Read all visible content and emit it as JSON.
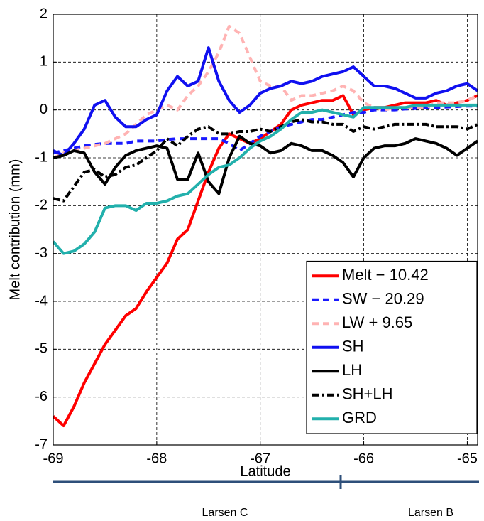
{
  "chart_data": {
    "type": "line",
    "x_label": "Latitude",
    "y_label": "Melt contribution (mm)",
    "x": [
      -69,
      -68.9,
      -68.8,
      -68.7,
      -68.6,
      -68.5,
      -68.4,
      -68.3,
      -68.2,
      -68.1,
      -68,
      -67.9,
      -67.8,
      -67.7,
      -67.6,
      -67.5,
      -67.4,
      -67.3,
      -67.2,
      -67.1,
      -67,
      -66.9,
      -66.8,
      -66.7,
      -66.6,
      -66.5,
      -66.4,
      -66.3,
      -66.2,
      -66.1,
      -66,
      -65.9,
      -65.8,
      -65.7,
      -65.6,
      -65.5,
      -65.4,
      -65.3,
      -65.2,
      -65.1,
      -65,
      -64.9
    ],
    "series": [
      {
        "name": "Melt − 10.42",
        "color": "#ff0000",
        "linestyle": "solid",
        "values": [
          -6.4,
          -6.6,
          -6.2,
          -5.7,
          -5.3,
          -4.9,
          -4.6,
          -4.3,
          -4.15,
          -3.8,
          -3.5,
          -3.2,
          -2.7,
          -2.5,
          -1.9,
          -1.3,
          -0.8,
          -0.5,
          -0.6,
          -0.7,
          -0.6,
          -0.45,
          -0.3,
          0.0,
          0.1,
          0.15,
          0.2,
          0.2,
          0.3,
          -0.1,
          0.0,
          0.05,
          0.05,
          0.1,
          0.15,
          0.15,
          0.15,
          0.2,
          0.1,
          0.15,
          0.2,
          0.3
        ]
      },
      {
        "name": "SW − 20.29",
        "color": "#1a1aff",
        "linestyle": "dashed",
        "values": [
          -0.9,
          -0.85,
          -0.8,
          -0.75,
          -0.72,
          -0.7,
          -0.7,
          -0.7,
          -0.65,
          -0.65,
          -0.65,
          -0.62,
          -0.6,
          -0.6,
          -0.6,
          -0.6,
          -0.6,
          -0.7,
          -0.85,
          -0.7,
          -0.55,
          -0.45,
          -0.35,
          -0.3,
          -0.25,
          -0.2,
          -0.2,
          -0.15,
          -0.1,
          -0.05,
          -0.05,
          0,
          0,
          0,
          0.02,
          0.03,
          0.05,
          0.05,
          0.06,
          0.07,
          0.08,
          0.08
        ]
      },
      {
        "name": "LW + 9.65",
        "color": "#ffb3b3",
        "linestyle": "dashed",
        "values": [
          -1.0,
          -0.9,
          -0.85,
          -0.8,
          -0.75,
          -0.7,
          -0.6,
          -0.5,
          -0.3,
          -0.1,
          0.0,
          0.1,
          0.0,
          0.3,
          0.5,
          0.8,
          1.2,
          1.75,
          1.6,
          1.1,
          0.6,
          0.5,
          0.5,
          0.2,
          0.3,
          0.3,
          0.35,
          0.4,
          0.5,
          0.4,
          0.15,
          0.05,
          0.0,
          0.05,
          0.05,
          0.05,
          0.05,
          0.15,
          0.15,
          0.15,
          0.2,
          0.3
        ]
      },
      {
        "name": "SH",
        "color": "#1010f0",
        "linestyle": "solid",
        "values": [
          -0.85,
          -0.95,
          -0.7,
          -0.4,
          0.1,
          0.2,
          -0.15,
          -0.35,
          -0.35,
          -0.2,
          -0.1,
          0.4,
          0.7,
          0.5,
          0.6,
          1.3,
          0.6,
          0.2,
          -0.05,
          0.1,
          0.35,
          0.45,
          0.5,
          0.6,
          0.55,
          0.6,
          0.7,
          0.75,
          0.8,
          0.9,
          0.7,
          0.5,
          0.5,
          0.45,
          0.35,
          0.25,
          0.25,
          0.35,
          0.4,
          0.5,
          0.55,
          0.4
        ]
      },
      {
        "name": "LH",
        "color": "#000000",
        "linestyle": "solid",
        "values": [
          -1.0,
          -0.95,
          -0.85,
          -0.9,
          -1.3,
          -1.55,
          -1.2,
          -0.95,
          -0.85,
          -0.8,
          -0.75,
          -0.8,
          -1.45,
          -1.45,
          -0.9,
          -1.5,
          -1.75,
          -1.0,
          -0.55,
          -0.7,
          -0.75,
          -0.9,
          -0.85,
          -0.7,
          -0.75,
          -0.85,
          -0.85,
          -0.95,
          -1.1,
          -1.4,
          -1.0,
          -0.8,
          -0.75,
          -0.75,
          -0.7,
          -0.6,
          -0.65,
          -0.7,
          -0.8,
          -0.95,
          -0.8,
          -0.65
        ]
      },
      {
        "name": "SH+LH",
        "color": "#000000",
        "linestyle": "dashdot",
        "values": [
          -1.85,
          -1.9,
          -1.6,
          -1.3,
          -1.25,
          -1.4,
          -1.35,
          -1.2,
          -1.15,
          -1.0,
          -0.85,
          -0.6,
          -0.75,
          -0.55,
          -0.4,
          -0.35,
          -0.5,
          -0.5,
          -0.45,
          -0.45,
          -0.4,
          -0.45,
          -0.35,
          -0.25,
          -0.2,
          -0.25,
          -0.25,
          -0.3,
          -0.3,
          -0.45,
          -0.35,
          -0.4,
          -0.35,
          -0.3,
          -0.3,
          -0.3,
          -0.3,
          -0.35,
          -0.35,
          -0.35,
          -0.4,
          -0.3
        ]
      },
      {
        "name": "GRD",
        "color": "#22b0ac",
        "linestyle": "solid",
        "values": [
          -2.75,
          -3.0,
          -2.95,
          -2.8,
          -2.55,
          -2.05,
          -2.0,
          -2.0,
          -2.1,
          -1.95,
          -1.95,
          -1.9,
          -1.8,
          -1.75,
          -1.55,
          -1.35,
          -1.2,
          -1.15,
          -1.0,
          -0.8,
          -0.65,
          -0.55,
          -0.4,
          -0.2,
          -0.05,
          -0.05,
          0.0,
          -0.05,
          -0.1,
          -0.15,
          0.05,
          0.05,
          0.05,
          0.05,
          0.05,
          0.1,
          0.1,
          0.1,
          0.1,
          0.1,
          0.1,
          0.1
        ]
      }
    ],
    "xlim": [
      -69,
      -64.9
    ],
    "xticks": [
      -69,
      -68,
      -67,
      -66,
      -65
    ],
    "ylim": [
      -7,
      2
    ],
    "yticks": [
      -7,
      -6,
      -5,
      -4,
      -3,
      -2,
      -1,
      0,
      1,
      2
    ],
    "grid": true,
    "legend": "lower right",
    "annotations": [
      "Larsen C",
      "Larsen B"
    ]
  }
}
